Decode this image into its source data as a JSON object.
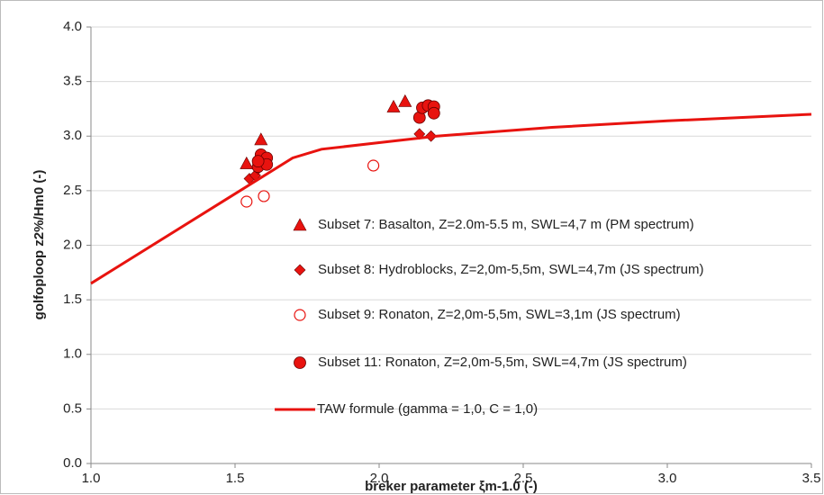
{
  "chart_data": {
    "type": "scatter",
    "x_label": "breker parameter ξm-1.0 (-)",
    "y_label": "golfoploop z2%/Hm0 (-)",
    "xlim": [
      1.0,
      3.5
    ],
    "ylim": [
      0.0,
      4.0
    ],
    "xticks": [
      {
        "value": 1.0,
        "label": "1.0"
      },
      {
        "value": 1.5,
        "label": "1.5"
      },
      {
        "value": 2.0,
        "label": "2.0"
      },
      {
        "value": 2.5,
        "label": "2.5"
      },
      {
        "value": 3.0,
        "label": "3.0"
      },
      {
        "value": 3.5,
        "label": "3.5"
      }
    ],
    "yticks": [
      {
        "value": 0.0,
        "label": "0.0"
      },
      {
        "value": 0.5,
        "label": "0.5"
      },
      {
        "value": 1.0,
        "label": "1.0"
      },
      {
        "value": 1.5,
        "label": "1.5"
      },
      {
        "value": 2.0,
        "label": "2.0"
      },
      {
        "value": 2.5,
        "label": "2.5"
      },
      {
        "value": 3.0,
        "label": "3.0"
      },
      {
        "value": 3.5,
        "label": "3.5"
      },
      {
        "value": 4.0,
        "label": "4.0"
      }
    ],
    "grid": true,
    "series": [
      {
        "name": "Subset 7: Basalton, Z=2.0m-5.5 m, SWL=4,7 m (PM spectrum)",
        "color": "#e8130f",
        "marker": "triangle",
        "x": [
          1.54,
          1.59,
          2.05,
          2.09
        ],
        "values": [
          2.75,
          2.97,
          3.27,
          3.32
        ]
      },
      {
        "name": "Subset 8: Hydroblocks, Z=2,0m-5,5m, SWL=4,7m (JS spectrum)",
        "color": "#e8130f",
        "marker": "diamond",
        "x": [
          1.55,
          1.57,
          1.58,
          1.6,
          2.14,
          2.18
        ],
        "values": [
          2.61,
          2.64,
          2.7,
          2.75,
          3.02,
          3.0
        ]
      },
      {
        "name": "Subset 9: Ronaton, Z=2,0m-5,5m, SWL=3,1m (JS spectrum)",
        "color": "#e8130f",
        "marker": "circle-open",
        "x": [
          1.54,
          1.6,
          1.98
        ],
        "values": [
          2.4,
          2.45,
          2.73
        ]
      },
      {
        "name": "Subset 11: Ronaton, Z=2,0m-5,5m, SWL=4,7m (JS spectrum)",
        "color": "#e8130f",
        "marker": "circle",
        "x": [
          1.58,
          1.59,
          1.61,
          1.61,
          1.58,
          2.14,
          2.15,
          2.17,
          2.19,
          2.19
        ],
        "values": [
          2.72,
          2.83,
          2.8,
          2.74,
          2.77,
          3.17,
          3.26,
          3.28,
          3.27,
          3.21
        ]
      },
      {
        "name": "TAW formule (gamma = 1,0, C = 1,0)",
        "color": "#e8130f",
        "marker": "line",
        "x": [
          1.0,
          1.7,
          1.8,
          2.0,
          2.2,
          2.6,
          3.0,
          3.5
        ],
        "values": [
          1.65,
          2.8,
          2.88,
          2.94,
          3.0,
          3.08,
          3.14,
          3.2
        ]
      }
    ]
  }
}
